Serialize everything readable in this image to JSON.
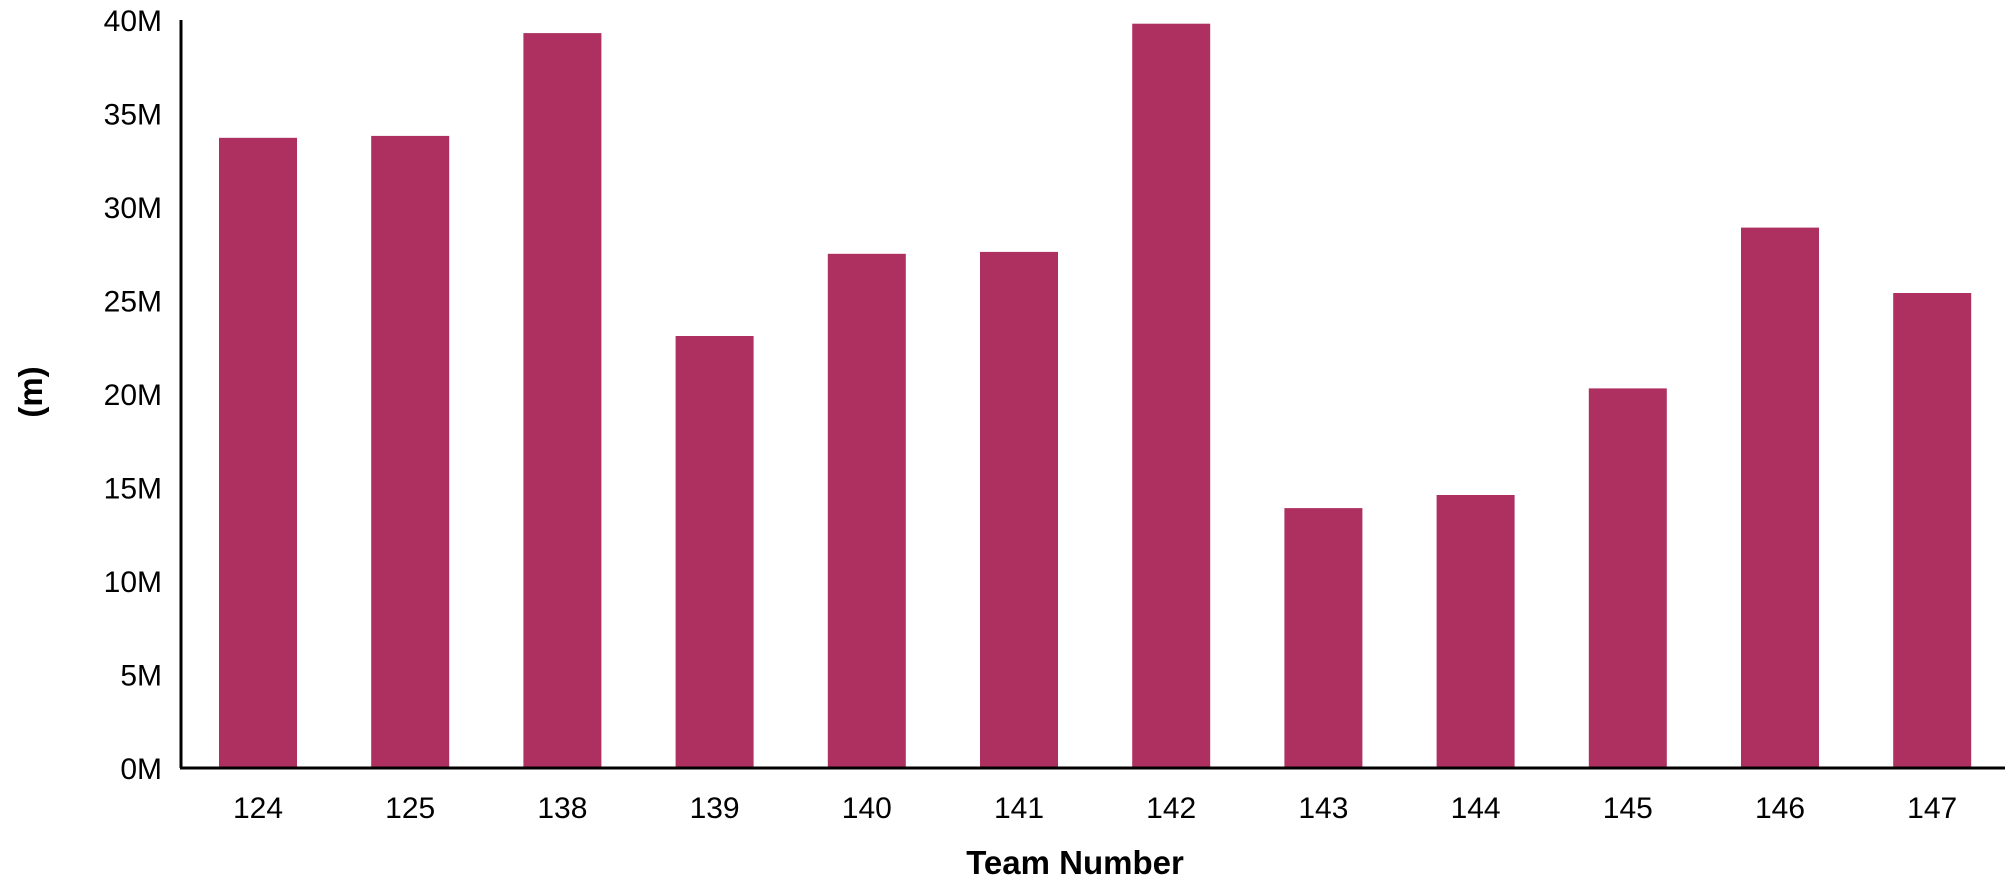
{
  "chart_data": {
    "type": "bar",
    "xlabel": "Team Number",
    "ylabel": "(m)",
    "categories": [
      "124",
      "125",
      "138",
      "139",
      "140",
      "141",
      "142",
      "143",
      "144",
      "145",
      "146",
      "147"
    ],
    "values": [
      33.7,
      33.8,
      39.3,
      23.1,
      27.5,
      27.6,
      39.8,
      13.9,
      14.6,
      20.3,
      28.9,
      25.4
    ],
    "value_unit": "M",
    "ylim": [
      0,
      40
    ],
    "yticks": [
      0,
      5,
      10,
      15,
      20,
      25,
      30,
      35,
      40
    ],
    "ytick_labels": [
      "0M",
      "5M",
      "10M",
      "15M",
      "20M",
      "25M",
      "30M",
      "35M",
      "40M"
    ],
    "grid": false,
    "legend": "none",
    "bar_color": "#ae3060",
    "axis_color": "#000000"
  }
}
